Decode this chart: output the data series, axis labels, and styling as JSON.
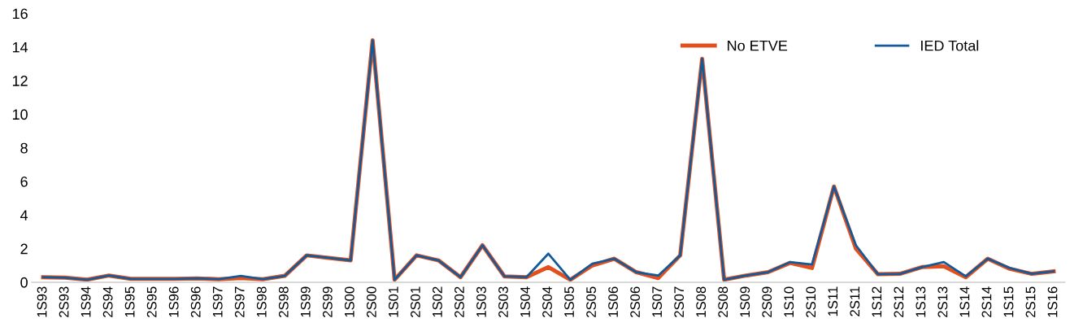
{
  "chart_data": {
    "type": "line",
    "categories": [
      "1S93",
      "2S93",
      "1S94",
      "2S94",
      "1S95",
      "2S95",
      "1S96",
      "2S96",
      "1S97",
      "2S97",
      "1S98",
      "2S98",
      "1S99",
      "2S99",
      "1S00",
      "2S00",
      "1S01",
      "2S01",
      "1S02",
      "2S02",
      "1S03",
      "2S03",
      "1S04",
      "2S04",
      "1S05",
      "2S05",
      "1S06",
      "2S06",
      "1S07",
      "2S07",
      "1S08",
      "2S08",
      "1S09",
      "2S09",
      "1S10",
      "2S10",
      "1S11",
      "2S11",
      "1S12",
      "2S12",
      "1S13",
      "2S13",
      "1S14",
      "2S14",
      "1S15",
      "2S15",
      "1S16"
    ],
    "series": [
      {
        "name": "No ETVE",
        "color": "#e2501e",
        "values": [
          0.3,
          0.27,
          0.15,
          0.4,
          0.2,
          0.2,
          0.2,
          0.23,
          0.18,
          0.25,
          0.18,
          0.38,
          1.6,
          1.45,
          1.3,
          14.4,
          0.15,
          1.6,
          1.3,
          0.3,
          2.2,
          0.35,
          0.3,
          0.9,
          0.15,
          1.0,
          1.4,
          0.6,
          0.25,
          1.6,
          13.3,
          0.15,
          0.4,
          0.6,
          1.15,
          0.85,
          5.7,
          2.0,
          0.48,
          0.5,
          0.9,
          0.95,
          0.3,
          1.4,
          0.8,
          0.5,
          0.65
        ]
      },
      {
        "name": "IED Total",
        "color": "#125a9a",
        "values": [
          0.3,
          0.27,
          0.15,
          0.4,
          0.2,
          0.2,
          0.2,
          0.23,
          0.18,
          0.38,
          0.18,
          0.38,
          1.6,
          1.45,
          1.3,
          14.4,
          0.15,
          1.6,
          1.3,
          0.3,
          2.2,
          0.35,
          0.3,
          1.7,
          0.15,
          1.1,
          1.4,
          0.6,
          0.4,
          1.6,
          13.3,
          0.15,
          0.4,
          0.6,
          1.2,
          1.05,
          5.7,
          2.2,
          0.48,
          0.5,
          0.9,
          1.2,
          0.35,
          1.4,
          0.85,
          0.5,
          0.65
        ]
      }
    ],
    "ylim": [
      0,
      16
    ],
    "yticks": [
      0,
      2,
      4,
      6,
      8,
      10,
      12,
      14,
      16
    ],
    "grid": false,
    "legend": "top right",
    "marker": "none",
    "line_style": "solid"
  }
}
